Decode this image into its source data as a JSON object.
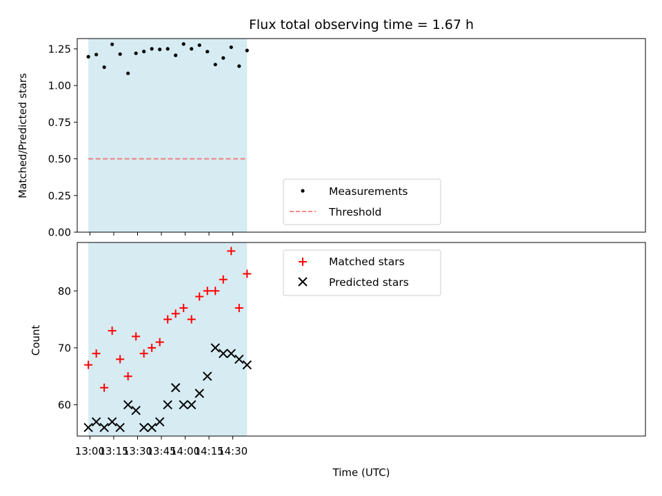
{
  "chart_data": [
    {
      "type": "scatter",
      "title": "Flux total observing time = 1.67 h",
      "ylabel": "Matched/Predicted stars",
      "ylim": [
        0,
        1.32
      ],
      "yticks": [
        0.0,
        0.25,
        0.5,
        0.75,
        1.0,
        1.25
      ],
      "ytick_labels": [
        "0.00",
        "0.25",
        "0.50",
        "0.75",
        "1.00",
        "1.25"
      ],
      "xlim_minutes": [
        772,
        1130
      ],
      "shaded_span": {
        "start": "12:59",
        "end": "14:39",
        "color": "#add8e6"
      },
      "series": [
        {
          "name": "Measurements",
          "marker": "dot",
          "color": "#000000",
          "x": [
            "12:59",
            "13:04",
            "13:09",
            "13:14",
            "13:19",
            "13:24",
            "13:29",
            "13:34",
            "13:39",
            "13:44",
            "13:49",
            "13:54",
            "13:59",
            "14:04",
            "14:09",
            "14:14",
            "14:19",
            "14:24",
            "14:29",
            "14:34",
            "14:39"
          ],
          "y": [
            1.196,
            1.211,
            1.125,
            1.281,
            1.214,
            1.083,
            1.22,
            1.232,
            1.25,
            1.246,
            1.25,
            1.206,
            1.283,
            1.25,
            1.275,
            1.231,
            1.143,
            1.188,
            1.261,
            1.132,
            1.239
          ]
        },
        {
          "name": "Threshold",
          "marker": "dashed-line",
          "color": "#f07878",
          "value": 0.5
        }
      ],
      "legend": {
        "position": "lower-center",
        "entries": [
          "Measurements",
          "Threshold"
        ]
      }
    },
    {
      "type": "scatter",
      "xlabel": "Time (UTC)",
      "ylabel": "Count",
      "ylim": [
        54.5,
        88.5
      ],
      "yticks": [
        60,
        70,
        80
      ],
      "ytick_labels": [
        "60",
        "70",
        "80"
      ],
      "xlim_minutes": [
        772,
        1130
      ],
      "xticks": [
        "13:00",
        "13:15",
        "13:30",
        "13:45",
        "14:00",
        "14:15",
        "14:30"
      ],
      "xtick_minutes": [
        780,
        795,
        810,
        825,
        840,
        855,
        870
      ],
      "shaded_span": {
        "start": "12:59",
        "end": "14:39",
        "color": "#add8e6"
      },
      "series": [
        {
          "name": "Matched stars",
          "marker": "plus",
          "color": "#ff0000",
          "x": [
            "12:59",
            "13:04",
            "13:09",
            "13:14",
            "13:19",
            "13:24",
            "13:29",
            "13:34",
            "13:39",
            "13:44",
            "13:49",
            "13:54",
            "13:59",
            "14:04",
            "14:09",
            "14:14",
            "14:19",
            "14:24",
            "14:29",
            "14:34",
            "14:39"
          ],
          "y": [
            67,
            69,
            63,
            73,
            68,
            65,
            72,
            69,
            70,
            71,
            75,
            76,
            77,
            75,
            79,
            80,
            80,
            82,
            87,
            77,
            83
          ]
        },
        {
          "name": "Predicted stars",
          "marker": "x",
          "color": "#000000",
          "x": [
            "12:59",
            "13:04",
            "13:09",
            "13:14",
            "13:19",
            "13:24",
            "13:29",
            "13:34",
            "13:39",
            "13:44",
            "13:49",
            "13:54",
            "13:59",
            "14:04",
            "14:09",
            "14:14",
            "14:19",
            "14:24",
            "14:29",
            "14:34",
            "14:39"
          ],
          "y": [
            56,
            57,
            56,
            57,
            56,
            60,
            59,
            56,
            56,
            57,
            60,
            63,
            60,
            60,
            62,
            65,
            70,
            69,
            69,
            68,
            67
          ]
        }
      ],
      "legend": {
        "position": "upper-center",
        "entries": [
          "Matched stars",
          "Predicted stars"
        ]
      }
    }
  ]
}
